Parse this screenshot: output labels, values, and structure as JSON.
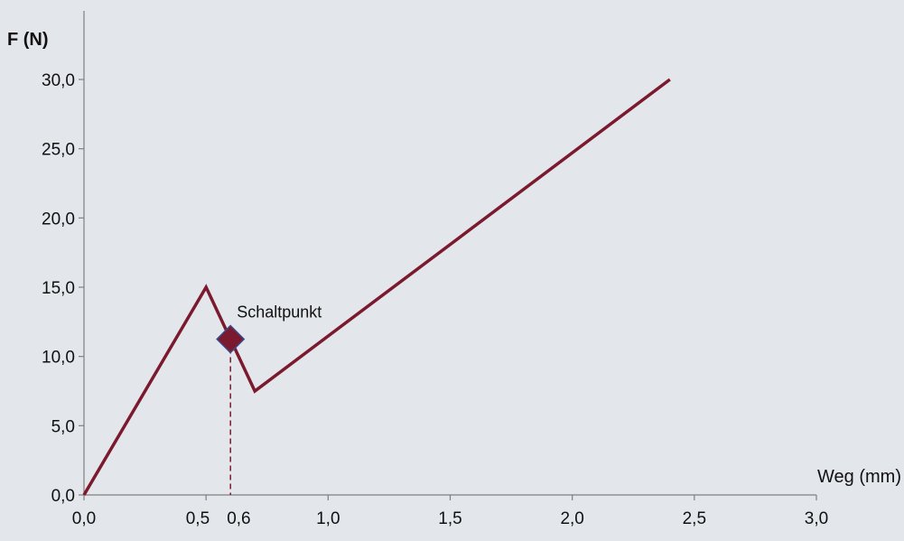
{
  "colors": {
    "background": "#e3e6ea",
    "axis": "#7f7f7f",
    "series": "#7b1a2e",
    "marker_fill": "#7b1a2e",
    "marker_stroke": "#3b4a8a"
  },
  "chart_data": {
    "type": "line",
    "title": "",
    "xlabel": "Weg (mm)",
    "ylabel": "F (N)",
    "xlim": [
      0,
      3
    ],
    "ylim": [
      0,
      30
    ],
    "grid": false,
    "x_ticks": [
      {
        "value": 0,
        "label": "0,0"
      },
      {
        "value": 0.5,
        "label": "0,5"
      },
      {
        "value": 0.6,
        "label": "0,6"
      },
      {
        "value": 1,
        "label": "1,0"
      },
      {
        "value": 1.5,
        "label": "1,5"
      },
      {
        "value": 2,
        "label": "2,0"
      },
      {
        "value": 2.5,
        "label": "2,5"
      },
      {
        "value": 3,
        "label": "3,0"
      }
    ],
    "y_ticks": [
      {
        "value": 0,
        "label": "0,0"
      },
      {
        "value": 5,
        "label": "5,0"
      },
      {
        "value": 10,
        "label": "10,0"
      },
      {
        "value": 15,
        "label": "15,0"
      },
      {
        "value": 20,
        "label": "20,0"
      },
      {
        "value": 25,
        "label": "25,0"
      },
      {
        "value": 30,
        "label": "30,0"
      }
    ],
    "series": [
      {
        "x": [
          0,
          0.5,
          0.7,
          2.4
        ],
        "y": [
          0,
          15,
          7.5,
          30
        ]
      }
    ],
    "annotations": [
      {
        "label": "Schaltpunkt",
        "x": 0.6,
        "y": 11.25,
        "marker": "diamond",
        "dropline": true
      }
    ]
  }
}
